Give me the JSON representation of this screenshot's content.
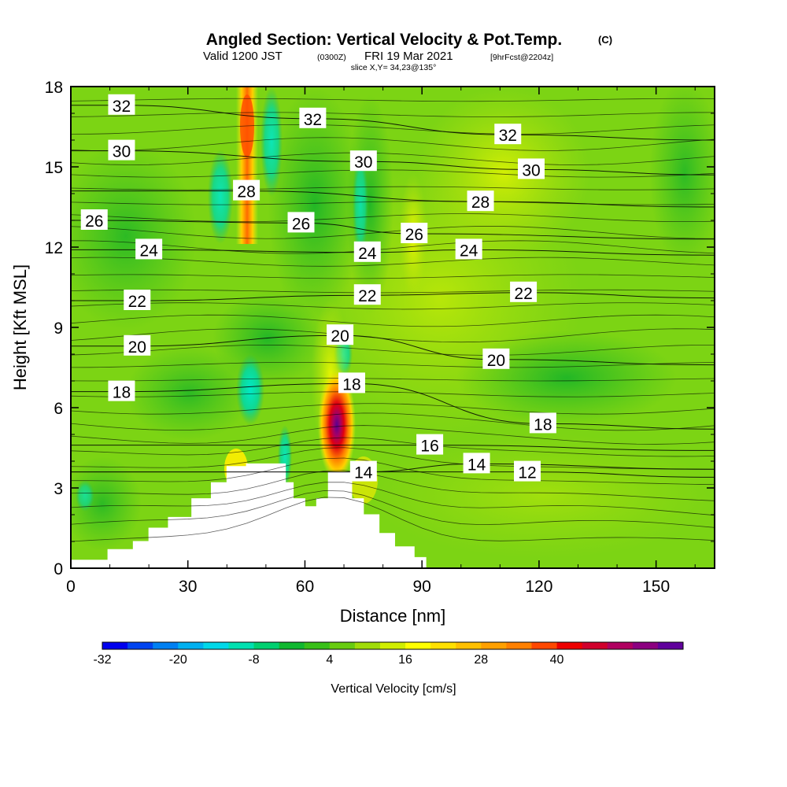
{
  "title": {
    "main": "Angled Section: Vertical Velocity & Pot.Temp.",
    "main_suffix": "(C)",
    "valid_prefix": "Valid 1200 JST",
    "valid_zulu": "(0300Z)",
    "valid_date": "FRI 19 Mar 2021",
    "forecast": "[9hrFcst@2204z]",
    "slice": "slice X,Y= 34,23@135°"
  },
  "chart_data": {
    "type": "heatmap",
    "xlabel": "Distance [nm]",
    "ylabel": "Height [Kft MSL]",
    "xlim": [
      0,
      165
    ],
    "ylim": [
      0,
      18
    ],
    "x_ticks": [
      0,
      30,
      60,
      90,
      120,
      150
    ],
    "x_tick_labels": [
      "0",
      "30",
      "60",
      "90",
      "120",
      "150"
    ],
    "y_ticks": [
      0,
      3,
      6,
      9,
      12,
      15,
      18
    ],
    "y_tick_labels": [
      "0",
      "3",
      "6",
      "9",
      "12",
      "15",
      "18"
    ],
    "colorbar": {
      "label": "Vertical Velocity [cm/s]",
      "tick_values": [
        -32,
        -20,
        -8,
        4,
        16,
        28,
        40
      ],
      "tick_labels": [
        "-32",
        "-20",
        "-8",
        "4",
        "16",
        "28",
        "40"
      ],
      "colors": [
        "#0000ee",
        "#0044f0",
        "#0080f2",
        "#00b0f0",
        "#00d8e8",
        "#00e0b0",
        "#00d070",
        "#10b830",
        "#38c018",
        "#68cc10",
        "#a0dc08",
        "#d0ee00",
        "#ffff00",
        "#ffe000",
        "#ffc000",
        "#ffa000",
        "#ff8000",
        "#ff4800",
        "#ee0000",
        "#d0002c",
        "#b00060",
        "#8c0080",
        "#60009c"
      ]
    },
    "potential_temperature_labels": [
      {
        "x": 13,
        "y": 17.3,
        "label": "32"
      },
      {
        "x": 62,
        "y": 16.8,
        "label": "32"
      },
      {
        "x": 112,
        "y": 16.2,
        "label": "32"
      },
      {
        "x": 13,
        "y": 15.6,
        "label": "30"
      },
      {
        "x": 75,
        "y": 15.2,
        "label": "30"
      },
      {
        "x": 118,
        "y": 14.9,
        "label": "30"
      },
      {
        "x": 45,
        "y": 14.1,
        "label": "28"
      },
      {
        "x": 105,
        "y": 13.7,
        "label": "28"
      },
      {
        "x": 6,
        "y": 13.0,
        "label": "26"
      },
      {
        "x": 59,
        "y": 12.9,
        "label": "26"
      },
      {
        "x": 88,
        "y": 12.5,
        "label": "26"
      },
      {
        "x": 20,
        "y": 11.9,
        "label": "24"
      },
      {
        "x": 76,
        "y": 11.8,
        "label": "24"
      },
      {
        "x": 102,
        "y": 11.9,
        "label": "24"
      },
      {
        "x": 17,
        "y": 10.0,
        "label": "22"
      },
      {
        "x": 76,
        "y": 10.2,
        "label": "22"
      },
      {
        "x": 116,
        "y": 10.3,
        "label": "22"
      },
      {
        "x": 17,
        "y": 8.3,
        "label": "20"
      },
      {
        "x": 69,
        "y": 8.7,
        "label": "20"
      },
      {
        "x": 109,
        "y": 7.8,
        "label": "20"
      },
      {
        "x": 13,
        "y": 6.6,
        "label": "18"
      },
      {
        "x": 72,
        "y": 6.9,
        "label": "18"
      },
      {
        "x": 121,
        "y": 5.4,
        "label": "18"
      },
      {
        "x": 92,
        "y": 4.6,
        "label": "16"
      },
      {
        "x": 75,
        "y": 3.6,
        "label": "14"
      },
      {
        "x": 104,
        "y": 3.9,
        "label": "14"
      },
      {
        "x": 117,
        "y": 3.6,
        "label": "12"
      }
    ],
    "terrain_heights_kft": [
      {
        "x": 0,
        "h": 0.3
      },
      {
        "x": 9.5,
        "h": 0.7
      },
      {
        "x": 16,
        "h": 1.0
      },
      {
        "x": 20,
        "h": 1.5
      },
      {
        "x": 25,
        "h": 1.9
      },
      {
        "x": 31,
        "h": 2.6
      },
      {
        "x": 36,
        "h": 3.2
      },
      {
        "x": 40,
        "h": 3.8
      },
      {
        "x": 45,
        "h": 3.9
      },
      {
        "x": 51,
        "h": 3.9
      },
      {
        "x": 55,
        "h": 3.2
      },
      {
        "x": 57,
        "h": 2.6
      },
      {
        "x": 60,
        "h": 2.3
      },
      {
        "x": 63,
        "h": 2.6
      },
      {
        "x": 66,
        "h": 3.6
      },
      {
        "x": 70,
        "h": 3.6
      },
      {
        "x": 72,
        "h": 2.6
      },
      {
        "x": 75,
        "h": 2.0
      },
      {
        "x": 79,
        "h": 1.3
      },
      {
        "x": 83,
        "h": 0.8
      },
      {
        "x": 88,
        "h": 0.4
      },
      {
        "x": 91,
        "h": 0.0
      }
    ]
  }
}
